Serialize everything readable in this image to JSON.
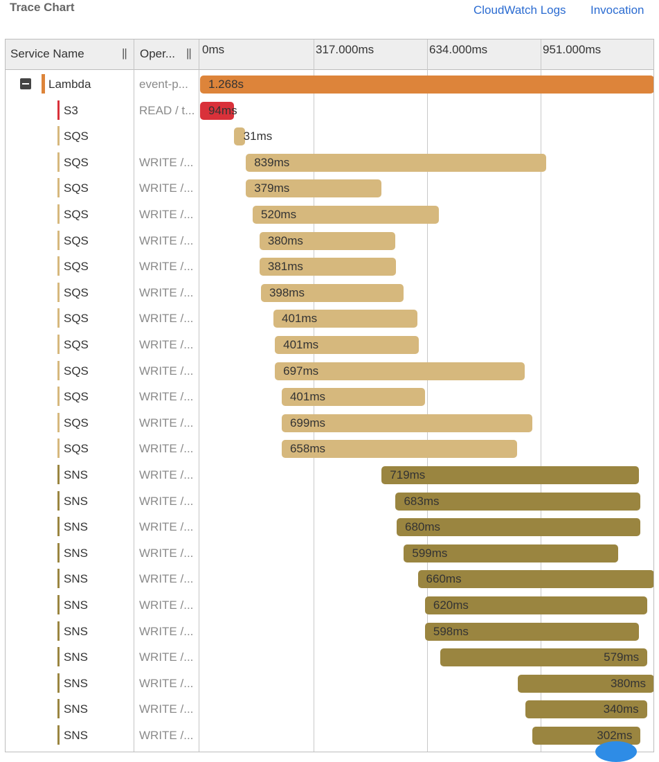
{
  "header": {
    "title": "Trace Chart",
    "links": [
      {
        "label": "CloudWatch Logs"
      },
      {
        "label": "Invocation"
      }
    ]
  },
  "columns": {
    "service": "Service Name",
    "operation": "Oper...",
    "resize_glyph": "||"
  },
  "colors": {
    "lambda": "#dd843a",
    "s3": "#d9313a",
    "sqs": "#d6b87d",
    "sns": "#9a8540"
  },
  "chart_data": {
    "type": "table",
    "x_unit": "ms",
    "xlim": [
      0,
      1268
    ],
    "ticks": [
      {
        "value": 0,
        "label": "0ms"
      },
      {
        "value": 317,
        "label": "317.000ms"
      },
      {
        "value": 634,
        "label": "634.000ms"
      },
      {
        "value": 951,
        "label": "951.000ms"
      }
    ],
    "rows": [
      {
        "service": "Lambda",
        "operation": "event-p...",
        "start": 0,
        "duration": 1268,
        "label": "1.268s",
        "kind": "lambda",
        "level": 0,
        "toggle": true
      },
      {
        "service": "S3",
        "operation": "READ / t...",
        "start": 0,
        "duration": 94,
        "label": "94ms",
        "kind": "s3",
        "level": 1
      },
      {
        "service": "SQS",
        "operation": "",
        "start": 94,
        "duration": 31,
        "label": "31ms",
        "kind": "sqs",
        "level": 1,
        "label_outside": true
      },
      {
        "service": "SQS",
        "operation": "WRITE /...",
        "start": 128,
        "duration": 839,
        "label": "839ms",
        "kind": "sqs",
        "level": 1
      },
      {
        "service": "SQS",
        "operation": "WRITE /...",
        "start": 128,
        "duration": 379,
        "label": "379ms",
        "kind": "sqs",
        "level": 1
      },
      {
        "service": "SQS",
        "operation": "WRITE /...",
        "start": 147,
        "duration": 520,
        "label": "520ms",
        "kind": "sqs",
        "level": 1
      },
      {
        "service": "SQS",
        "operation": "WRITE /...",
        "start": 166,
        "duration": 380,
        "label": "380ms",
        "kind": "sqs",
        "level": 1
      },
      {
        "service": "SQS",
        "operation": "WRITE /...",
        "start": 166,
        "duration": 381,
        "label": "381ms",
        "kind": "sqs",
        "level": 1
      },
      {
        "service": "SQS",
        "operation": "WRITE /...",
        "start": 170,
        "duration": 398,
        "label": "398ms",
        "kind": "sqs",
        "level": 1
      },
      {
        "service": "SQS",
        "operation": "WRITE /...",
        "start": 205,
        "duration": 401,
        "label": "401ms",
        "kind": "sqs",
        "level": 1
      },
      {
        "service": "SQS",
        "operation": "WRITE /...",
        "start": 209,
        "duration": 401,
        "label": "401ms",
        "kind": "sqs",
        "level": 1
      },
      {
        "service": "SQS",
        "operation": "WRITE /...",
        "start": 209,
        "duration": 697,
        "label": "697ms",
        "kind": "sqs",
        "level": 1
      },
      {
        "service": "SQS",
        "operation": "WRITE /...",
        "start": 228,
        "duration": 401,
        "label": "401ms",
        "kind": "sqs",
        "level": 1
      },
      {
        "service": "SQS",
        "operation": "WRITE /...",
        "start": 228,
        "duration": 699,
        "label": "699ms",
        "kind": "sqs",
        "level": 1
      },
      {
        "service": "SQS",
        "operation": "WRITE /...",
        "start": 228,
        "duration": 658,
        "label": "658ms",
        "kind": "sqs",
        "level": 1
      },
      {
        "service": "SNS",
        "operation": "WRITE /...",
        "start": 507,
        "duration": 719,
        "label": "719ms",
        "kind": "sns",
        "level": 1
      },
      {
        "service": "SNS",
        "operation": "WRITE /...",
        "start": 546,
        "duration": 683,
        "label": "683ms",
        "kind": "sns",
        "level": 1
      },
      {
        "service": "SNS",
        "operation": "WRITE /...",
        "start": 549,
        "duration": 680,
        "label": "680ms",
        "kind": "sns",
        "level": 1
      },
      {
        "service": "SNS",
        "operation": "WRITE /...",
        "start": 569,
        "duration": 599,
        "label": "599ms",
        "kind": "sns",
        "level": 1
      },
      {
        "service": "SNS",
        "operation": "WRITE /...",
        "start": 608,
        "duration": 660,
        "label": "660ms",
        "kind": "sns",
        "level": 1
      },
      {
        "service": "SNS",
        "operation": "WRITE /...",
        "start": 628,
        "duration": 620,
        "label": "620ms",
        "kind": "sns",
        "level": 1
      },
      {
        "service": "SNS",
        "operation": "WRITE /...",
        "start": 628,
        "duration": 598,
        "label": "598ms",
        "kind": "sns",
        "level": 1
      },
      {
        "service": "SNS",
        "operation": "WRITE /...",
        "start": 670,
        "duration": 579,
        "label": "579ms",
        "kind": "sns",
        "level": 1,
        "label_right": true
      },
      {
        "service": "SNS",
        "operation": "WRITE /...",
        "start": 888,
        "duration": 380,
        "label": "380ms",
        "kind": "sns",
        "level": 1,
        "label_right": true
      },
      {
        "service": "SNS",
        "operation": "WRITE /...",
        "start": 908,
        "duration": 340,
        "label": "340ms",
        "kind": "sns",
        "level": 1,
        "label_right": true
      },
      {
        "service": "SNS",
        "operation": "WRITE /...",
        "start": 928,
        "duration": 302,
        "label": "302ms",
        "kind": "sns",
        "level": 1,
        "label_right": true
      }
    ]
  }
}
